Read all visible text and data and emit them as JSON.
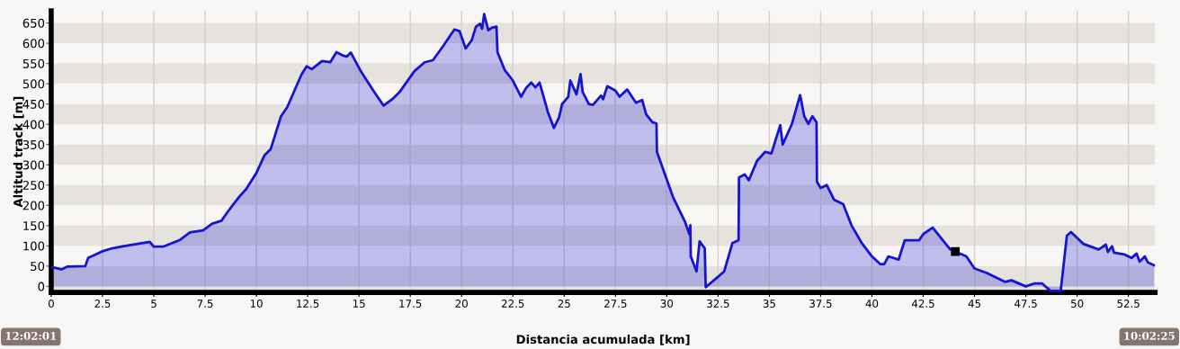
{
  "chart_data": {
    "type": "area",
    "xlabel": "Distancia acumulada [km]",
    "ylabel": "Altitud track [m]",
    "xlim": [
      0,
      53.8
    ],
    "ylim": [
      -15,
      680
    ],
    "xticks": [
      0,
      2.5,
      5,
      7.5,
      10,
      12.5,
      15,
      17.5,
      20,
      22.5,
      25,
      27.5,
      30,
      32.5,
      35,
      37.5,
      40,
      42.5,
      45,
      47.5,
      50,
      52.5
    ],
    "yticks": [
      0,
      50,
      100,
      150,
      200,
      250,
      300,
      350,
      400,
      450,
      500,
      550,
      600,
      650
    ],
    "grid": "x",
    "legend": false,
    "bands": [
      {
        "axis": "y",
        "from": -15,
        "to": 50,
        "color": "#e6e2de"
      },
      {
        "axis": "y",
        "from": 100,
        "to": 150,
        "color": "#e6e2de"
      },
      {
        "axis": "y",
        "from": 200,
        "to": 250,
        "color": "#e6e2de"
      },
      {
        "axis": "y",
        "from": 300,
        "to": 350,
        "color": "#e6e2de"
      },
      {
        "axis": "y",
        "from": 400,
        "to": 450,
        "color": "#e6e2de"
      },
      {
        "axis": "y",
        "from": 500,
        "to": 550,
        "color": "#e6e2de"
      },
      {
        "axis": "y",
        "from": 600,
        "to": 650,
        "color": "#e6e2de"
      }
    ],
    "annotations": [
      "12:02:01",
      "10:02:25"
    ],
    "x": [
      0.06,
      0.5,
      0.8,
      1.66,
      1.8,
      2.46,
      2.97,
      3.48,
      4.8,
      5.0,
      5.45,
      6.25,
      6.76,
      7.4,
      7.85,
      8.3,
      8.6,
      9.16,
      9.5,
      10.0,
      10.4,
      10.7,
      11.2,
      11.5,
      12.2,
      12.45,
      12.7,
      13.2,
      13.6,
      13.9,
      14.2,
      14.4,
      14.6,
      15.1,
      15.7,
      16.2,
      16.67,
      16.97,
      17.7,
      18.2,
      18.6,
      19.1,
      19.65,
      19.9,
      20.2,
      20.5,
      20.7,
      20.9,
      21.0,
      21.1,
      21.3,
      21.5,
      21.7,
      21.75,
      22.1,
      22.5,
      22.9,
      23.15,
      23.4,
      23.6,
      23.8,
      24.0,
      24.2,
      24.5,
      24.75,
      24.9,
      25.2,
      25.3,
      25.6,
      25.8,
      25.9,
      26.2,
      26.4,
      26.8,
      26.9,
      27.1,
      27.5,
      27.7,
      28.07,
      28.5,
      28.8,
      29.0,
      29.3,
      29.5,
      29.52,
      30.3,
      30.9,
      31.1,
      31.15,
      31.17,
      31.45,
      31.6,
      31.85,
      31.9,
      32.3,
      32.8,
      33.2,
      33.5,
      33.52,
      33.8,
      34.0,
      34.4,
      34.8,
      35.1,
      35.53,
      35.65,
      36.1,
      36.5,
      36.7,
      36.9,
      37.1,
      37.3,
      37.32,
      37.5,
      37.8,
      38.15,
      38.6,
      39.0,
      39.5,
      40.0,
      40.4,
      40.6,
      40.8,
      41.3,
      41.6,
      42.3,
      42.5,
      42.96,
      43.5,
      43.8,
      44.6,
      45.0,
      45.6,
      46.5,
      46.8,
      47.5,
      47.9,
      48.3,
      48.7,
      49.2,
      49.5,
      49.7,
      50.3,
      51.05,
      51.4,
      51.5,
      51.7,
      51.8,
      52.3,
      52.65,
      52.9,
      53.05,
      53.3,
      53.45,
      53.75
    ],
    "series": [
      {
        "color": "#1414d2",
        "values": [
          47,
          42,
          49,
          50,
          70,
          86,
          94,
          99,
          110,
          98,
          98,
          114,
          133,
          138,
          155,
          162,
          184,
          221,
          240,
          280,
          324,
          339,
          420,
          442,
          523,
          543,
          536,
          556,
          553,
          578,
          570,
          567,
          577,
          530,
          483,
          446,
          464,
          479,
          531,
          553,
          558,
          593,
          634,
          630,
          587,
          608,
          641,
          648,
          636,
          672,
          632,
          639,
          641,
          578,
          534,
          508,
          468,
          490,
          503,
          491,
          503,
          468,
          431,
          391,
          417,
          450,
          468,
          508,
          474,
          524,
          480,
          450,
          448,
          471,
          462,
          494,
          483,
          468,
          486,
          453,
          460,
          424,
          405,
          402,
          332,
          221,
          158,
          129,
          151,
          74,
          37,
          111,
          94,
          -2,
          15,
          37,
          107,
          114,
          269,
          276,
          262,
          310,
          332,
          328,
          398,
          350,
          401,
          472,
          420,
          401,
          420,
          405,
          258,
          243,
          250,
          214,
          203,
          151,
          107,
          74,
          55,
          55,
          74,
          66,
          114,
          114,
          129,
          145,
          111,
          92,
          74,
          44,
          33,
          11,
          15,
          0,
          7,
          7,
          -11,
          -11,
          125,
          134,
          105,
          91,
          103,
          85,
          99,
          83,
          79,
          70,
          81,
          61,
          74,
          59,
          52
        ]
      },
      {
        "type": "scatter",
        "color": "#000000",
        "marker": "square",
        "x": [
          44.06
        ],
        "values": [
          86
        ]
      }
    ]
  }
}
